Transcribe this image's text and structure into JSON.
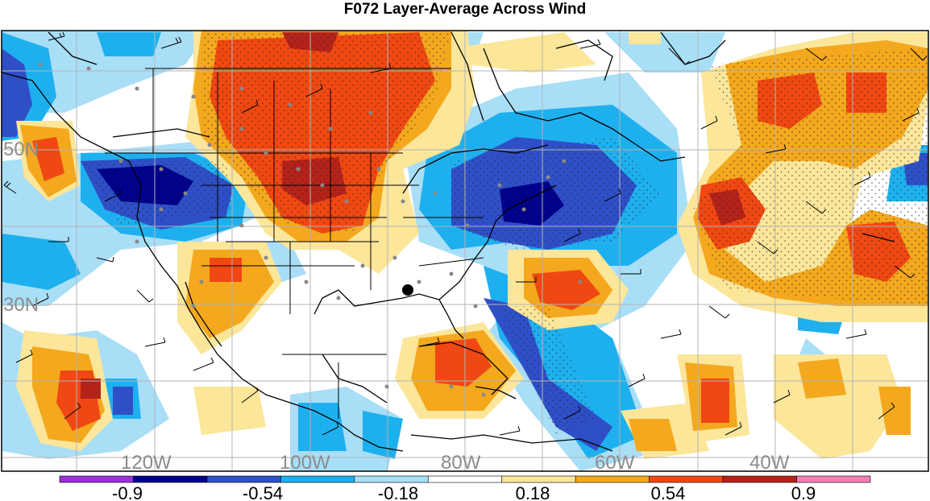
{
  "title": "F072 Layer-Average Across Wind",
  "map": {
    "lat_labels": [
      "50N",
      "30N"
    ],
    "lon_labels": [
      "120W",
      "100W",
      "80W",
      "60W",
      "40W"
    ],
    "label_color": "#8c8c8c",
    "grid_color": "#b4b4b4",
    "coast_color": "#000000"
  },
  "colorbar": {
    "bins": [
      {
        "color": "#9b30d9"
      },
      {
        "color": "#00008c"
      },
      {
        "color": "#2f4fc7"
      },
      {
        "color": "#1eb0ee"
      },
      {
        "color": "#a9def7"
      },
      {
        "color": "#ffffff"
      },
      {
        "color": "#fbe69a"
      },
      {
        "color": "#f4a81e"
      },
      {
        "color": "#f04812"
      },
      {
        "color": "#b4231a"
      },
      {
        "color": "#f27fb4"
      }
    ],
    "tick_labels": [
      "-0.9",
      "-0.54",
      "-0.18",
      "0.18",
      "0.54",
      "0.9"
    ]
  }
}
